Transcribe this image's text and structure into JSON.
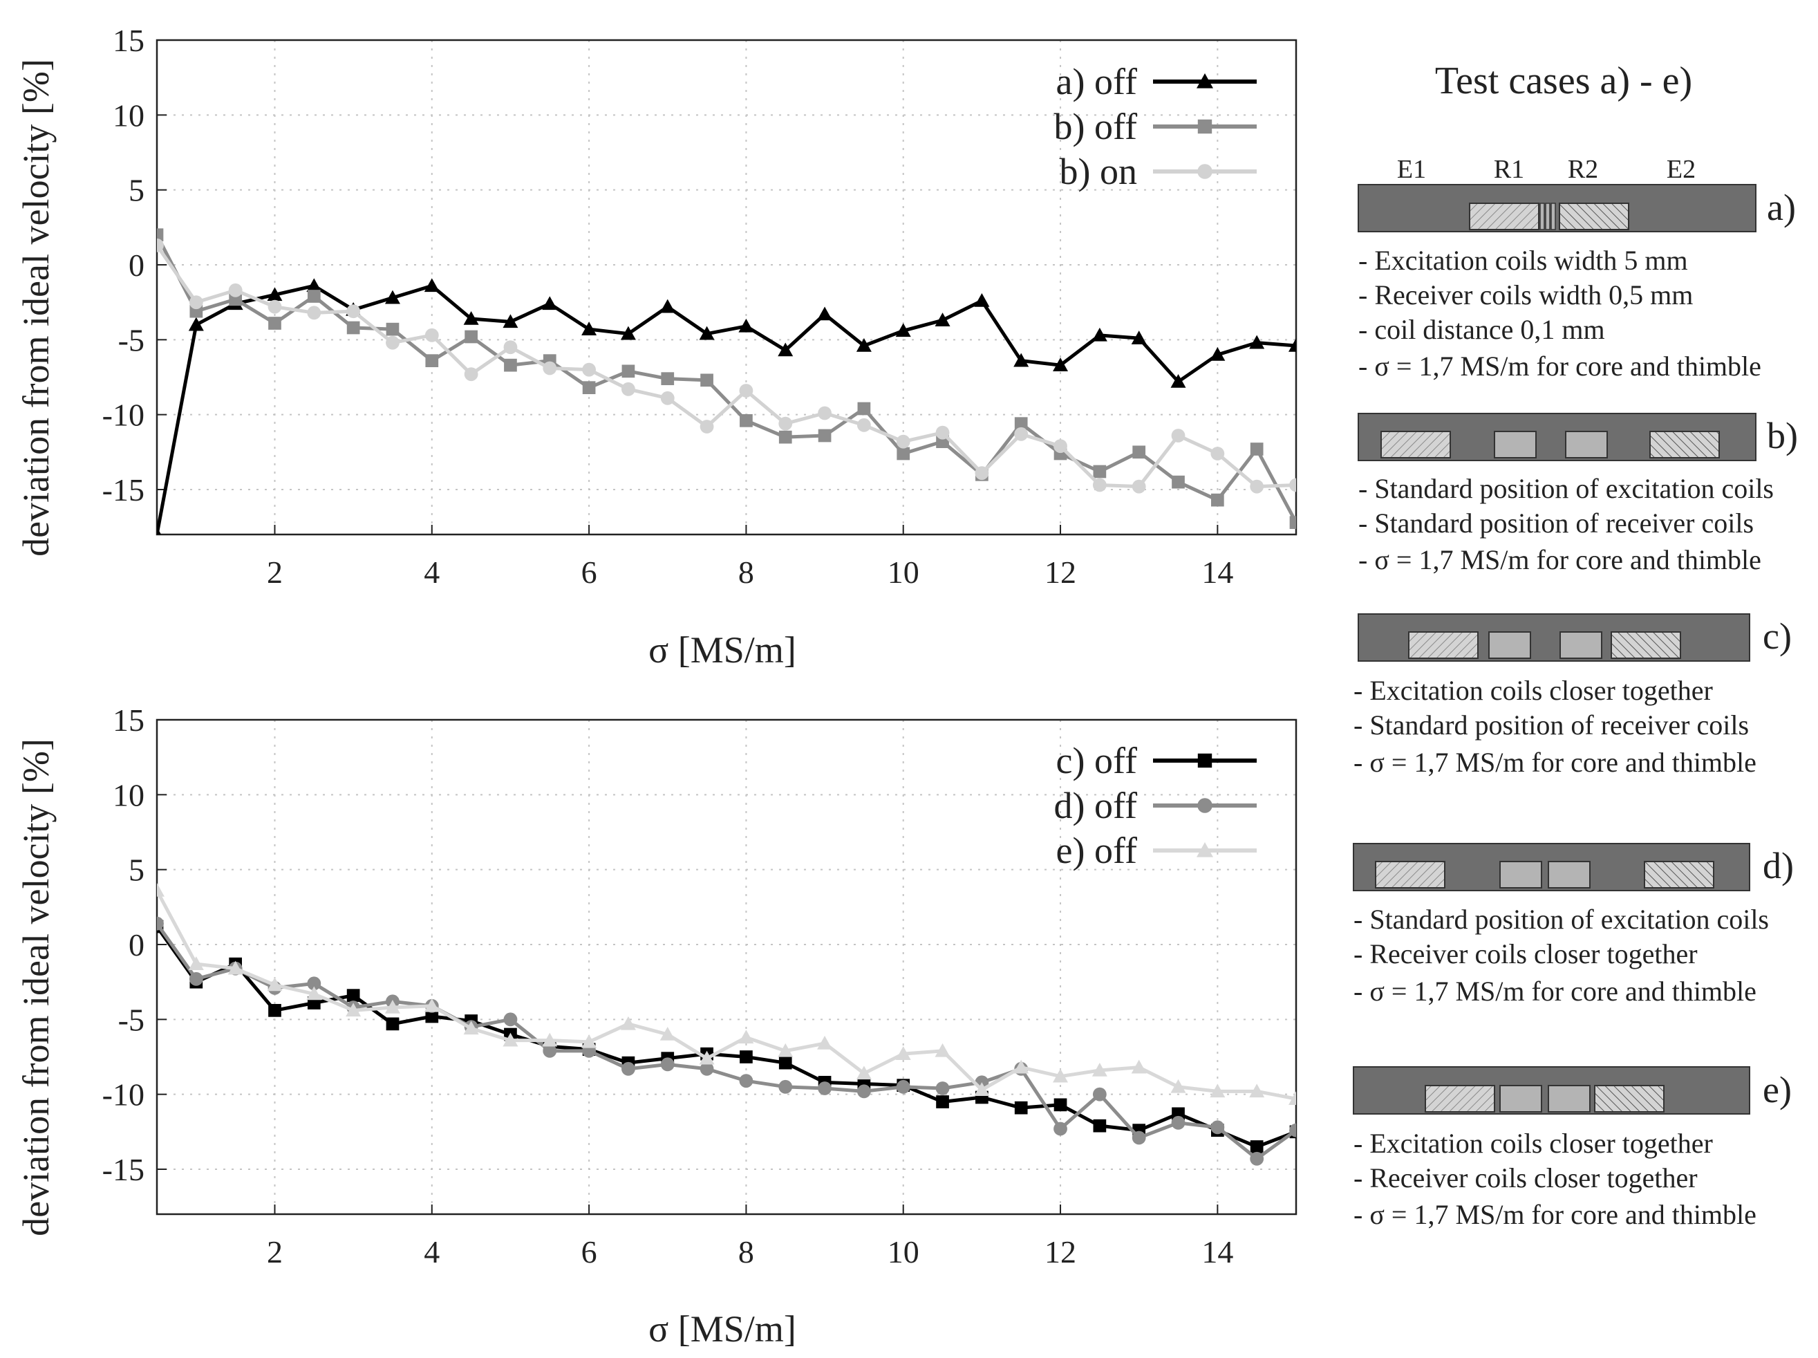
{
  "chart_data": [
    {
      "type": "line",
      "title": "",
      "xlabel": "σ [MS/m]",
      "ylabel": "deviation from ideal velocity [%]",
      "xlim": [
        0.5,
        15
      ],
      "ylim": [
        -18,
        15
      ],
      "xticks": [
        2,
        4,
        6,
        8,
        10,
        12,
        14
      ],
      "yticks": [
        -15,
        -10,
        -5,
        0,
        5,
        10,
        15
      ],
      "grid": true,
      "legend_position": "top-right",
      "x": [
        0.5,
        1,
        1.5,
        2,
        2.5,
        3,
        3.5,
        4,
        4.5,
        5,
        5.5,
        6,
        6.5,
        7,
        7.5,
        8,
        8.5,
        9,
        9.5,
        10,
        10.5,
        11,
        11.5,
        12,
        12.5,
        13,
        13.5,
        14,
        14.5,
        15
      ],
      "series": [
        {
          "name": "a) off",
          "color": "#000000",
          "marker": "triangle",
          "values": [
            -18,
            -4,
            -2.6,
            -2,
            -1.4,
            -3,
            -2.2,
            -1.4,
            -3.6,
            -3.8,
            -2.6,
            -4.3,
            -4.6,
            -2.8,
            -4.6,
            -4.1,
            -5.7,
            -3.3,
            -5.4,
            -4.4,
            -3.7,
            -2.4,
            -6.4,
            -6.7,
            -4.7,
            -4.9,
            -7.8,
            -6,
            -5.2,
            -5.4
          ]
        },
        {
          "name": "b) off",
          "color": "#8c8c8c",
          "marker": "square",
          "values": [
            2,
            -3.1,
            -2.3,
            -3.9,
            -2.1,
            -4.2,
            -4.3,
            -6.4,
            -4.8,
            -6.7,
            -6.4,
            -8.2,
            -7.1,
            -7.6,
            -7.7,
            -10.4,
            -11.5,
            -11.4,
            -9.6,
            -12.6,
            -11.8,
            -14,
            -10.6,
            -12.6,
            -13.8,
            -12.5,
            -14.5,
            -15.7,
            -12.3,
            -17.2
          ]
        },
        {
          "name": "b) on",
          "color": "#d2d2d2",
          "marker": "circle",
          "values": [
            1.3,
            -2.5,
            -1.7,
            -2.8,
            -3.2,
            -3.1,
            -5.2,
            -4.7,
            -7.3,
            -5.5,
            -6.9,
            -7,
            -8.3,
            -8.9,
            -10.8,
            -8.4,
            -10.6,
            -9.9,
            -10.7,
            -11.8,
            -11.2,
            -13.9,
            -11.3,
            -12.1,
            -14.7,
            -14.8,
            -11.4,
            -12.6,
            -14.8,
            -14.7
          ]
        }
      ]
    },
    {
      "type": "line",
      "title": "",
      "xlabel": "σ [MS/m]",
      "ylabel": "deviation from ideal velocity [%]",
      "xlim": [
        0.5,
        15
      ],
      "ylim": [
        -18,
        15
      ],
      "xticks": [
        2,
        4,
        6,
        8,
        10,
        12,
        14
      ],
      "yticks": [
        -15,
        -10,
        -5,
        0,
        5,
        10,
        15
      ],
      "grid": true,
      "legend_position": "top-right",
      "x": [
        0.5,
        1,
        1.5,
        2,
        2.5,
        3,
        3.5,
        4,
        4.5,
        5,
        5.5,
        6,
        6.5,
        7,
        7.5,
        8,
        8.5,
        9,
        9.5,
        10,
        10.5,
        11,
        11.5,
        12,
        12.5,
        13,
        13.5,
        14,
        14.5,
        15
      ],
      "series": [
        {
          "name": "c) off",
          "color": "#000000",
          "marker": "square",
          "values": [
            1.2,
            -2.5,
            -1.3,
            -4.4,
            -3.9,
            -3.4,
            -5.3,
            -4.8,
            -5.1,
            -6,
            -6.8,
            -7,
            -7.9,
            -7.6,
            -7.3,
            -7.5,
            -7.9,
            -9.2,
            -9.3,
            -9.4,
            -10.5,
            -10.2,
            -10.9,
            -10.7,
            -12.1,
            -12.4,
            -11.3,
            -12.4,
            -13.5,
            -12.5
          ]
        },
        {
          "name": "d) off",
          "color": "#8c8c8c",
          "marker": "circle",
          "values": [
            1.4,
            -2.3,
            -1.6,
            -2.9,
            -2.6,
            -4.2,
            -3.8,
            -4.1,
            -5.5,
            -5,
            -7.1,
            -7.1,
            -8.3,
            -8,
            -8.3,
            -9.1,
            -9.5,
            -9.6,
            -9.8,
            -9.5,
            -9.6,
            -9.2,
            -8.3,
            -12.3,
            -10,
            -12.9,
            -11.9,
            -12.2,
            -14.3,
            -12.4
          ]
        },
        {
          "name": "e) off",
          "color": "#d8d8d8",
          "marker": "triangle",
          "values": [
            3.6,
            -1.3,
            -1.6,
            -2.7,
            -3.3,
            -4.4,
            -4.2,
            -4.1,
            -5.6,
            -6.4,
            -6.4,
            -6.5,
            -5.3,
            -6,
            -7.6,
            -6.2,
            -7.1,
            -6.6,
            -8.6,
            -7.3,
            -7.1,
            -9.7,
            -8.2,
            -8.8,
            -8.4,
            -8.2,
            -9.5,
            -9.8,
            -9.8,
            -10.3
          ]
        }
      ]
    }
  ],
  "test_cases": {
    "title": "Test cases a) - e)",
    "coil_labels": [
      "E1",
      "R1",
      "R2",
      "E2"
    ],
    "cases": [
      {
        "letter": "a)",
        "desc": [
          "- Excitation coils width 5 mm",
          "- Receiver coils width 0,5 mm",
          "- coil distance 0,1 mm",
          "- σ = 1,7 MS/m for core and thimble"
        ]
      },
      {
        "letter": "b)",
        "desc": [
          "- Standard position of excitation coils",
          "- Standard position of receiver coils",
          "- σ = 1,7 MS/m for core and thimble"
        ]
      },
      {
        "letter": "c)",
        "desc": [
          "- Excitation coils closer together",
          "- Standard position of receiver coils",
          "- σ = 1,7 MS/m for core and thimble"
        ]
      },
      {
        "letter": "d)",
        "desc": [
          "- Standard position of excitation coils",
          "- Receiver coils closer together",
          "- σ = 1,7 MS/m for core and thimble"
        ]
      },
      {
        "letter": "e)",
        "desc": [
          "- Excitation coils closer together",
          "- Receiver coils closer together",
          "- σ = 1,7 MS/m for core and thimble"
        ]
      }
    ]
  },
  "colors": {
    "core": "#6e6e6e",
    "coil_receiver": "#b4b4b4",
    "coil_hatch": "#c8c8c8"
  }
}
